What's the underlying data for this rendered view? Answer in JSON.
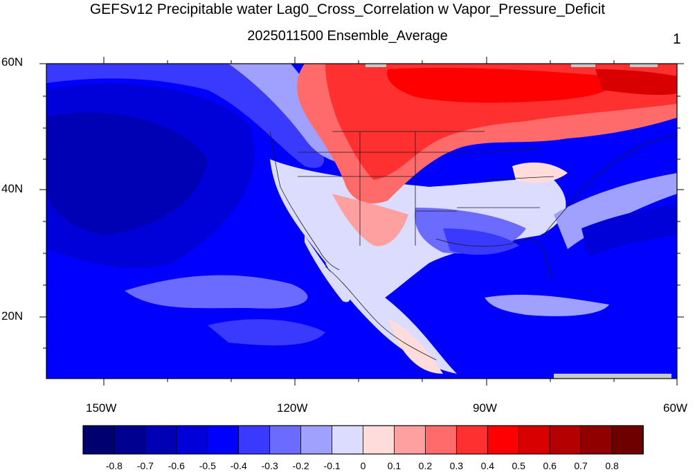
{
  "title": "GEFSv12 Precipitable water Lag0_Cross_Correlation w Vapor_Pressure_Deficit",
  "subtitle": "2025011500 Ensemble_Average",
  "corner_label": "1",
  "axes": {
    "lat_labels": [
      "60N",
      "40N",
      "20N"
    ],
    "lon_labels": [
      "150W",
      "120W",
      "90W",
      "60W"
    ]
  },
  "colorbar": {
    "labels": [
      "-0.8",
      "-0.7",
      "-0.6",
      "-0.5",
      "-0.4",
      "-0.3",
      "-0.2",
      "-0.1",
      "0",
      "0.1",
      "0.2",
      "0.3",
      "0.4",
      "0.5",
      "0.6",
      "0.7",
      "0.8"
    ],
    "colors": [
      "#00006e",
      "#000090",
      "#0000b4",
      "#0000d8",
      "#0000ff",
      "#3a3aff",
      "#6b6bff",
      "#a0a0ff",
      "#dcdcff",
      "#ffdcdc",
      "#ffa0a0",
      "#ff6b6b",
      "#ff3030",
      "#ff0000",
      "#d80000",
      "#b40000",
      "#900000",
      "#6e0000"
    ]
  },
  "map": {
    "region": "North America / North Pacific",
    "projection": "cylindrical equidistant"
  }
}
